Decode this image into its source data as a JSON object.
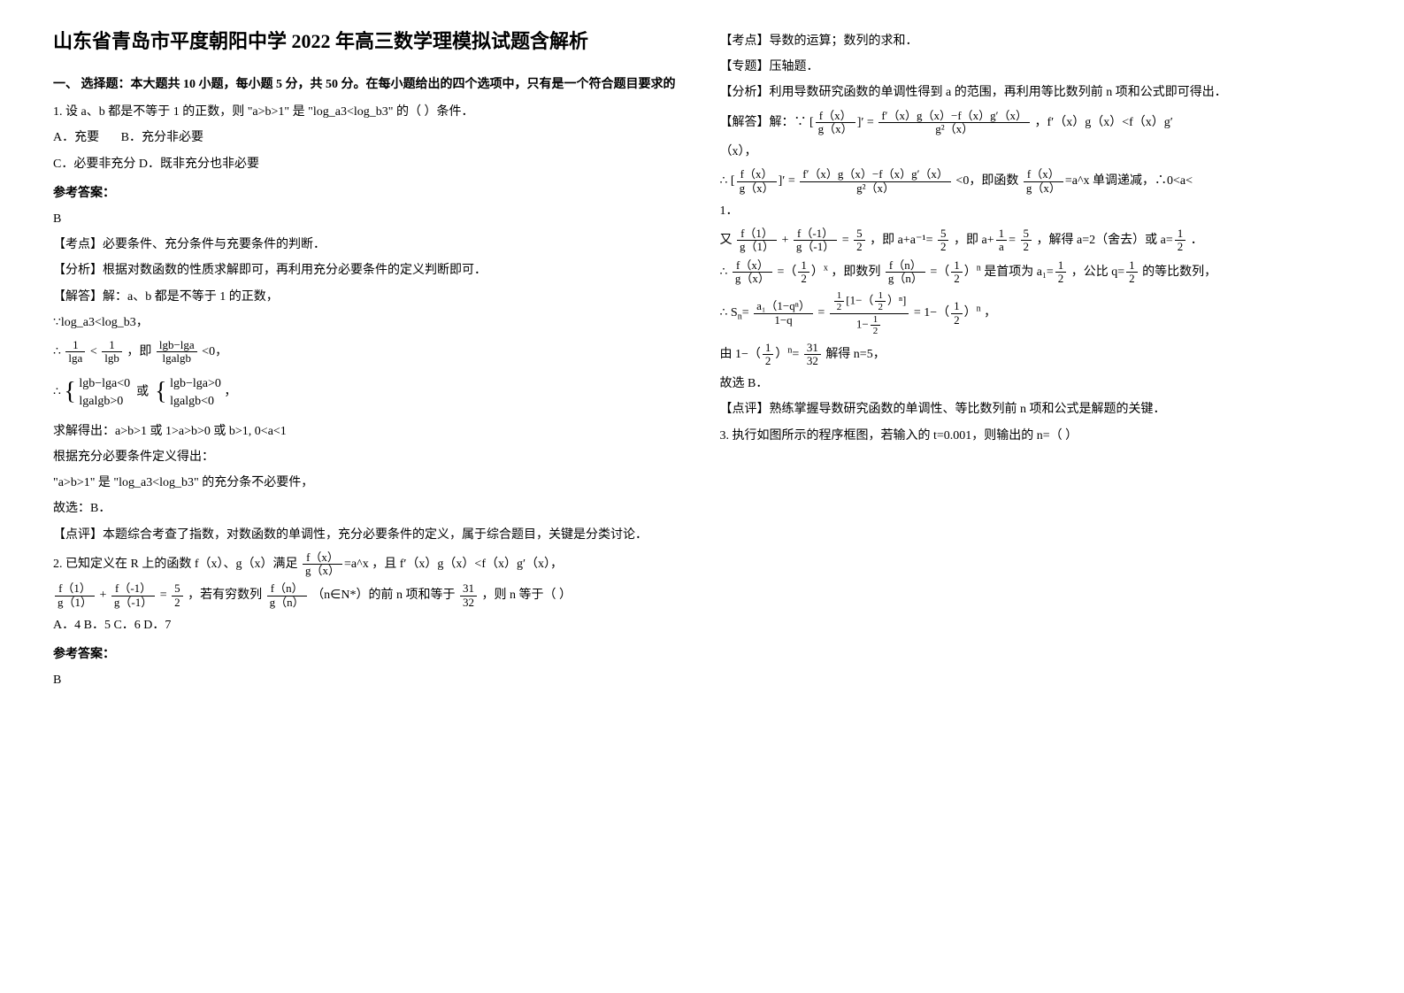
{
  "title": "山东省青岛市平度朝阳中学 2022 年高三数学理模拟试题含解析",
  "section1_head": "一、 选择题：本大题共 10 小题，每小题 5 分，共 50 分。在每小题给出的四个选项中，只有是一个符合题目要求的",
  "q1": {
    "stem": "1. 设 a、b 都是不等于 1 的正数，则 \"a>b>1\" 是 \"log_a3<log_b3\" 的（    ）条件．",
    "optA": "A．充要",
    "optB": "B．充分非必要",
    "optC": "C．必要非充分",
    "optD": "D．既非充分也非必要",
    "answer_label": "参考答案：",
    "answer": "B",
    "kaodian": "【考点】必要条件、充分条件与充要条件的判断．",
    "fenxi": "【分析】根据对数函数的性质求解即可，再利用充分必要条件的定义判断即可．",
    "jieda_head": "【解答】解：a、b 都是不等于 1 的正数，",
    "line1": "∵log_a3<log_b3，",
    "line3_tail": "<0，",
    "line5": "求解得出：a>b>1 或 1>a>b>0 或 b>1, 0<a<1",
    "line6": "根据充分必要条件定义得出：",
    "line7": "\"a>b>1\" 是 \"log_a3<log_b3\" 的充分条不必要件，",
    "line8": "故选：B．",
    "dianping": "【点评】本题综合考查了指数，对数函数的单调性，充分必要条件的定义，属于综合题目，关键是分类讨论．"
  },
  "q2": {
    "stem_a": "2. 已知定义在 R 上的函数 f（x）、g（x）满足",
    "stem_b": "，且 f′（x）g（x）<f（x）g′（x），",
    "stem_c": "，若有穷数列",
    "stem_d": "（n∈N*）的前 n 项和等于",
    "stem_e": "，则 n 等于（        ）",
    "opts": "A．4    B．5    C．6    D．7",
    "answer_label": "参考答案：",
    "answer": "B",
    "kaodian": "【考点】导数的运算；数列的求和．",
    "zhuanti": "【专题】压轴题．",
    "fenxi": "【分析】利用导数研究函数的单调性得到 a 的范围，再利用等比数列前 n 项和公式即可得出．",
    "jieda_head": "【解答】解：∵",
    "jieda_tail1": "，f′（x）g（x）<f（x）g′",
    "jieda_tail1b": "（x），",
    "jieda_line2a": "∴",
    "jieda_line2b": "<0，即函数",
    "jieda_line2c": "单调递减，∴0<a<",
    "jieda_line2d": "1．",
    "jieda_line3a": "又",
    "jieda_line3b": "，即",
    "jieda_line3c": "，即",
    "jieda_line3d": "，解得 a=2（舍去）或",
    "jieda_line3e": "．",
    "jieda_line4a": "∴",
    "jieda_line4b": "，即数列",
    "jieda_line4c": "是首项为",
    "jieda_line4d": "，公比",
    "jieda_line4e": "的等比数列，",
    "jieda_line5a": "∴",
    "jieda_line5b": "，",
    "jieda_line6a": "由",
    "jieda_line6b": "解得 n=5，",
    "guxuan": "故选 B．",
    "dianping": "【点评】熟练掌握导数研究函数的单调性、等比数列前 n 项和公式是解题的关键．"
  },
  "q3": {
    "stem": "3. 执行如图所示的程序框图，若输入的 t=0.001，则输出的 n=（        ）"
  },
  "math": {
    "f_over_g": {
      "num": "f（x）",
      "den": "g（x）"
    },
    "eq_ax": "=a^x",
    "lg_frac1": {
      "num": "1",
      "den": "lga"
    },
    "lg_frac2": {
      "num": "1",
      "den": "lgb"
    },
    "lg_frac3": {
      "num": "lgb−lga",
      "den": "lgalgb"
    },
    "brace1_l1": "lgb−lga<0",
    "brace1_l2": "lgalgb>0",
    "brace2_l1": "lgb−lga>0",
    "brace2_l2": "lgalgb<0",
    "or": "或",
    "f1g1": {
      "num": "f（1）",
      "den": "g（1）"
    },
    "fm1gm1": {
      "num": "f（-1）",
      "den": "g（-1）"
    },
    "five_half": {
      "num": "5",
      "den": "2"
    },
    "fngn": {
      "num": "f（n）",
      "den": "g（n）"
    },
    "thirtyone_32": {
      "num": "31",
      "den": "32"
    },
    "deriv_formula": {
      "num": "f′（x）g（x）−f（x）g′（x）",
      "den": "g²（x）"
    },
    "half": {
      "num": "1",
      "den": "2"
    },
    "one_over_a": {
      "num": "1",
      "den": "a"
    },
    "S_formula_top": "[1−（ ）ⁿ]",
    "a1_1mq": {
      "num": "a₁（1−qⁿ）",
      "den": "1−q"
    }
  }
}
